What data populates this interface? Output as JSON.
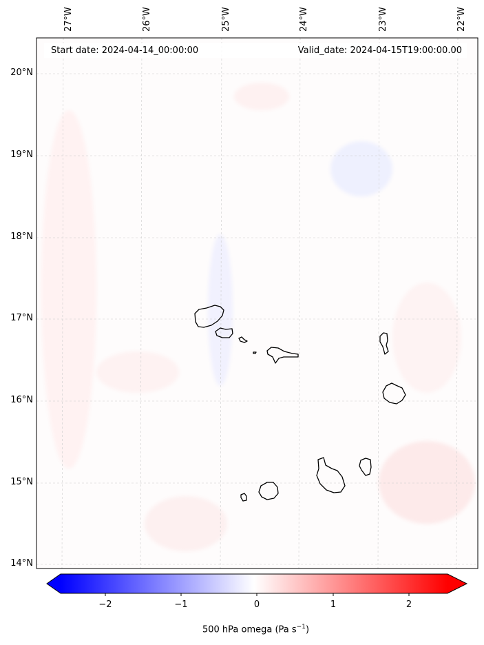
{
  "map": {
    "start_label": "Start date: 2024-04-14_00:00:00",
    "valid_label": "Valid_date: 2024-04-15T19:00:00.00",
    "lon_ticks": [
      "27°W",
      "26°W",
      "25°W",
      "24°W",
      "23°W",
      "22°W"
    ],
    "lat_ticks": [
      "20°N",
      "19°N",
      "18°N",
      "17°N",
      "16°N",
      "15°N",
      "14°N"
    ],
    "gridlines": true,
    "colormap": [
      "#0000ff",
      "#ffffff",
      "#ff0000"
    ],
    "islands": [
      "Santo Antão",
      "São Vicente",
      "Santa Luzia",
      "São Nicolau",
      "Sal",
      "Boa Vista",
      "Brava",
      "Fogo",
      "Santiago",
      "Maio"
    ]
  },
  "colorbar": {
    "label_prefix": "500 hPa omega (Pa s",
    "label_exp": "−1",
    "label_suffix": ")",
    "ticks": [
      "−2",
      "−1",
      "0",
      "1",
      "2"
    ],
    "range": [
      -2.6,
      2.6
    ],
    "extend": "both"
  }
}
